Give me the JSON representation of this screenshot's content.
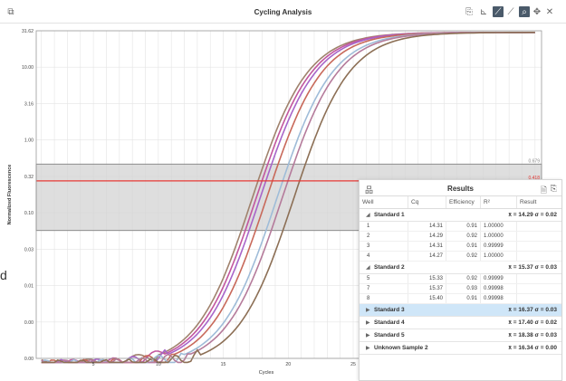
{
  "window": {
    "title": "Cycling Analysis",
    "icons": [
      "expand-icon",
      "copy-icon",
      "threshold-icon",
      "linear-scale-icon",
      "log-scale-icon",
      "zoom-icon",
      "pan-icon",
      "reset-icon"
    ]
  },
  "chart_data": {
    "type": "line",
    "ylabel": "Normalized Fluorescence",
    "xlabel": "Cycles",
    "y_scale": "log",
    "y_ticks": [
      "31.62",
      "10.00",
      "3.16",
      "1.00",
      "0.32",
      "0.10",
      "0.03",
      "0.01",
      "0.00",
      "0.00"
    ],
    "x_ticks": [
      "5",
      "10",
      "15",
      "20",
      "25"
    ],
    "grid": true,
    "threshold": {
      "value": "0.418",
      "band_upper": "0.679",
      "color": "#e53935"
    },
    "series": [
      {
        "color": "#a0826d",
        "cq": 14.0
      },
      {
        "color": "#c2569e",
        "cq": 14.3
      },
      {
        "color": "#a865c9",
        "cq": 14.6
      },
      {
        "color": "#c8695a",
        "cq": 15.1
      },
      {
        "color": "#9fbcd8",
        "cq": 15.9
      },
      {
        "color": "#b57b9b",
        "cq": 16.3
      },
      {
        "color": "#8c6f55",
        "cq": 17.2
      }
    ]
  },
  "left_cut_text": "d",
  "results": {
    "title": "Results",
    "columns": [
      "Well",
      "Cq",
      "Efficiency",
      "R²",
      "Result"
    ],
    "groups": [
      {
        "name": "Standard 1",
        "stat": "x̄ = 14.29 σ = 0.02",
        "expanded": true,
        "selected": false,
        "rows": [
          {
            "well": "1",
            "cq": "14.31",
            "eff": "0.91",
            "r2": "1.00000"
          },
          {
            "well": "2",
            "cq": "14.29",
            "eff": "0.92",
            "r2": "1.00000"
          },
          {
            "well": "3",
            "cq": "14.31",
            "eff": "0.91",
            "r2": "0.99999"
          },
          {
            "well": "4",
            "cq": "14.27",
            "eff": "0.92",
            "r2": "1.00000"
          }
        ]
      },
      {
        "name": "Standard 2",
        "stat": "x̄ = 15.37 σ = 0.03",
        "expanded": true,
        "selected": false,
        "rows": [
          {
            "well": "5",
            "cq": "15.33",
            "eff": "0.92",
            "r2": "0.99999"
          },
          {
            "well": "7",
            "cq": "15.37",
            "eff": "0.93",
            "r2": "0.99998"
          },
          {
            "well": "8",
            "cq": "15.40",
            "eff": "0.91",
            "r2": "0.99998"
          }
        ]
      },
      {
        "name": "Standard 3",
        "stat": "x̄ = 16.37 σ = 0.03",
        "expanded": false,
        "selected": true,
        "rows": []
      },
      {
        "name": "Standard 4",
        "stat": "x̄ = 17.40 σ = 0.02",
        "expanded": false,
        "selected": false,
        "rows": []
      },
      {
        "name": "Standard 5",
        "stat": "x̄ = 18.38 σ = 0.03",
        "expanded": false,
        "selected": false,
        "rows": []
      },
      {
        "name": "Unknown Sample 2",
        "stat": "x̄ = 16.34 σ = 0.00",
        "expanded": false,
        "selected": false,
        "rows": []
      }
    ]
  }
}
